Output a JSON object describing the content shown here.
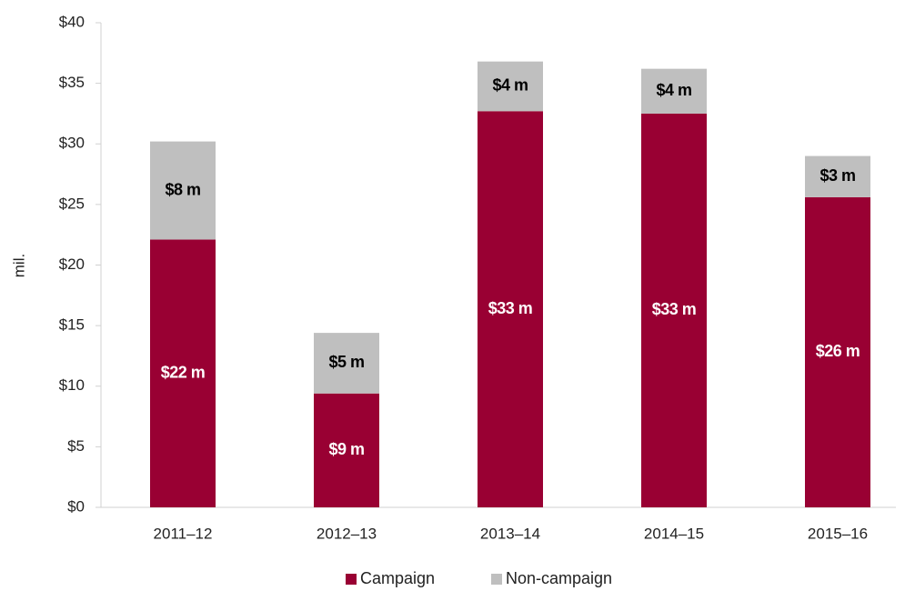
{
  "chart_data": {
    "type": "stacked_bar",
    "y_label": "mil.",
    "categories": [
      "2011–12",
      "2012–13",
      "2013–14",
      "2014–15",
      "2015–16"
    ],
    "series": [
      {
        "name": "Campaign",
        "color": "#990033",
        "values": [
          22.1,
          9.4,
          32.7,
          32.5,
          25.6
        ],
        "value_labels": [
          "$22 m",
          "$9 m",
          "$33 m",
          "$33 m",
          "$26 m"
        ]
      },
      {
        "name": "Non-campaign",
        "color": "#bfbfbf",
        "values": [
          8.1,
          5.0,
          4.1,
          3.7,
          3.4
        ],
        "value_labels": [
          "$8 m",
          "$5 m",
          "$4 m",
          "$4 m",
          "$3 m"
        ]
      }
    ],
    "ylim": [
      0,
      40
    ],
    "yticks": [
      {
        "value": 0,
        "label": "$0"
      },
      {
        "value": 5,
        "label": "$5"
      },
      {
        "value": 10,
        "label": "$10"
      },
      {
        "value": 15,
        "label": "$15"
      },
      {
        "value": 20,
        "label": "$20"
      },
      {
        "value": 25,
        "label": "$25"
      },
      {
        "value": 30,
        "label": "$30"
      },
      {
        "value": 35,
        "label": "$35"
      },
      {
        "value": 40,
        "label": "$40"
      }
    ],
    "legend": "bottom"
  }
}
